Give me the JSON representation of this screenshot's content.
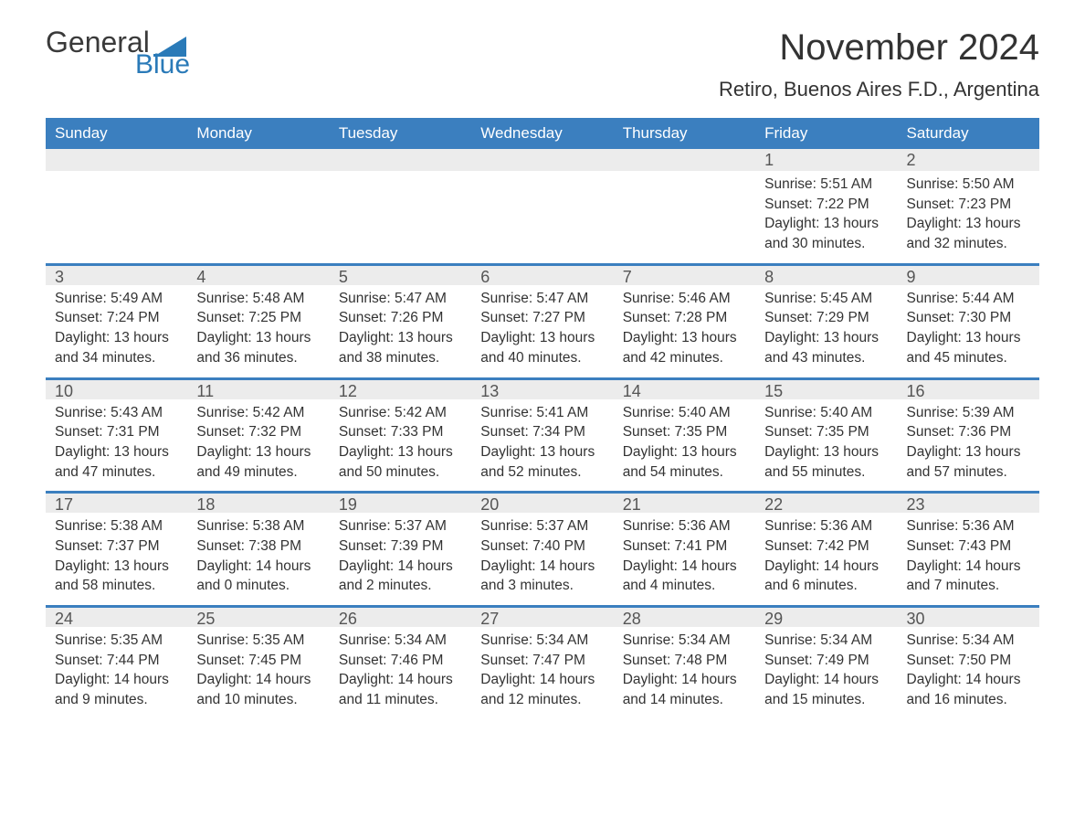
{
  "colors": {
    "header_bg": "#3b7fbf",
    "header_text": "#ffffff",
    "daynum_strip_bg": "#ececec",
    "week_divider": "#3b7fbf",
    "body_text": "#333333",
    "logo_blue": "#2a7ab8",
    "background": "#ffffff"
  },
  "typography": {
    "month_title_fontsize": 40,
    "location_fontsize": 22,
    "weekday_fontsize": 17,
    "daynum_fontsize": 18,
    "body_fontsize": 15.5,
    "font_family": "Arial"
  },
  "logo": {
    "line1": "General",
    "line2": "Blue"
  },
  "title": "November 2024",
  "location": "Retiro, Buenos Aires F.D., Argentina",
  "weekdays": [
    "Sunday",
    "Monday",
    "Tuesday",
    "Wednesday",
    "Thursday",
    "Friday",
    "Saturday"
  ],
  "weeks": [
    [
      null,
      null,
      null,
      null,
      null,
      {
        "day": "1",
        "sunrise": "Sunrise: 5:51 AM",
        "sunset": "Sunset: 7:22 PM",
        "daylight1": "Daylight: 13 hours",
        "daylight2": "and 30 minutes."
      },
      {
        "day": "2",
        "sunrise": "Sunrise: 5:50 AM",
        "sunset": "Sunset: 7:23 PM",
        "daylight1": "Daylight: 13 hours",
        "daylight2": "and 32 minutes."
      }
    ],
    [
      {
        "day": "3",
        "sunrise": "Sunrise: 5:49 AM",
        "sunset": "Sunset: 7:24 PM",
        "daylight1": "Daylight: 13 hours",
        "daylight2": "and 34 minutes."
      },
      {
        "day": "4",
        "sunrise": "Sunrise: 5:48 AM",
        "sunset": "Sunset: 7:25 PM",
        "daylight1": "Daylight: 13 hours",
        "daylight2": "and 36 minutes."
      },
      {
        "day": "5",
        "sunrise": "Sunrise: 5:47 AM",
        "sunset": "Sunset: 7:26 PM",
        "daylight1": "Daylight: 13 hours",
        "daylight2": "and 38 minutes."
      },
      {
        "day": "6",
        "sunrise": "Sunrise: 5:47 AM",
        "sunset": "Sunset: 7:27 PM",
        "daylight1": "Daylight: 13 hours",
        "daylight2": "and 40 minutes."
      },
      {
        "day": "7",
        "sunrise": "Sunrise: 5:46 AM",
        "sunset": "Sunset: 7:28 PM",
        "daylight1": "Daylight: 13 hours",
        "daylight2": "and 42 minutes."
      },
      {
        "day": "8",
        "sunrise": "Sunrise: 5:45 AM",
        "sunset": "Sunset: 7:29 PM",
        "daylight1": "Daylight: 13 hours",
        "daylight2": "and 43 minutes."
      },
      {
        "day": "9",
        "sunrise": "Sunrise: 5:44 AM",
        "sunset": "Sunset: 7:30 PM",
        "daylight1": "Daylight: 13 hours",
        "daylight2": "and 45 minutes."
      }
    ],
    [
      {
        "day": "10",
        "sunrise": "Sunrise: 5:43 AM",
        "sunset": "Sunset: 7:31 PM",
        "daylight1": "Daylight: 13 hours",
        "daylight2": "and 47 minutes."
      },
      {
        "day": "11",
        "sunrise": "Sunrise: 5:42 AM",
        "sunset": "Sunset: 7:32 PM",
        "daylight1": "Daylight: 13 hours",
        "daylight2": "and 49 minutes."
      },
      {
        "day": "12",
        "sunrise": "Sunrise: 5:42 AM",
        "sunset": "Sunset: 7:33 PM",
        "daylight1": "Daylight: 13 hours",
        "daylight2": "and 50 minutes."
      },
      {
        "day": "13",
        "sunrise": "Sunrise: 5:41 AM",
        "sunset": "Sunset: 7:34 PM",
        "daylight1": "Daylight: 13 hours",
        "daylight2": "and 52 minutes."
      },
      {
        "day": "14",
        "sunrise": "Sunrise: 5:40 AM",
        "sunset": "Sunset: 7:35 PM",
        "daylight1": "Daylight: 13 hours",
        "daylight2": "and 54 minutes."
      },
      {
        "day": "15",
        "sunrise": "Sunrise: 5:40 AM",
        "sunset": "Sunset: 7:35 PM",
        "daylight1": "Daylight: 13 hours",
        "daylight2": "and 55 minutes."
      },
      {
        "day": "16",
        "sunrise": "Sunrise: 5:39 AM",
        "sunset": "Sunset: 7:36 PM",
        "daylight1": "Daylight: 13 hours",
        "daylight2": "and 57 minutes."
      }
    ],
    [
      {
        "day": "17",
        "sunrise": "Sunrise: 5:38 AM",
        "sunset": "Sunset: 7:37 PM",
        "daylight1": "Daylight: 13 hours",
        "daylight2": "and 58 minutes."
      },
      {
        "day": "18",
        "sunrise": "Sunrise: 5:38 AM",
        "sunset": "Sunset: 7:38 PM",
        "daylight1": "Daylight: 14 hours",
        "daylight2": "and 0 minutes."
      },
      {
        "day": "19",
        "sunrise": "Sunrise: 5:37 AM",
        "sunset": "Sunset: 7:39 PM",
        "daylight1": "Daylight: 14 hours",
        "daylight2": "and 2 minutes."
      },
      {
        "day": "20",
        "sunrise": "Sunrise: 5:37 AM",
        "sunset": "Sunset: 7:40 PM",
        "daylight1": "Daylight: 14 hours",
        "daylight2": "and 3 minutes."
      },
      {
        "day": "21",
        "sunrise": "Sunrise: 5:36 AM",
        "sunset": "Sunset: 7:41 PM",
        "daylight1": "Daylight: 14 hours",
        "daylight2": "and 4 minutes."
      },
      {
        "day": "22",
        "sunrise": "Sunrise: 5:36 AM",
        "sunset": "Sunset: 7:42 PM",
        "daylight1": "Daylight: 14 hours",
        "daylight2": "and 6 minutes."
      },
      {
        "day": "23",
        "sunrise": "Sunrise: 5:36 AM",
        "sunset": "Sunset: 7:43 PM",
        "daylight1": "Daylight: 14 hours",
        "daylight2": "and 7 minutes."
      }
    ],
    [
      {
        "day": "24",
        "sunrise": "Sunrise: 5:35 AM",
        "sunset": "Sunset: 7:44 PM",
        "daylight1": "Daylight: 14 hours",
        "daylight2": "and 9 minutes."
      },
      {
        "day": "25",
        "sunrise": "Sunrise: 5:35 AM",
        "sunset": "Sunset: 7:45 PM",
        "daylight1": "Daylight: 14 hours",
        "daylight2": "and 10 minutes."
      },
      {
        "day": "26",
        "sunrise": "Sunrise: 5:34 AM",
        "sunset": "Sunset: 7:46 PM",
        "daylight1": "Daylight: 14 hours",
        "daylight2": "and 11 minutes."
      },
      {
        "day": "27",
        "sunrise": "Sunrise: 5:34 AM",
        "sunset": "Sunset: 7:47 PM",
        "daylight1": "Daylight: 14 hours",
        "daylight2": "and 12 minutes."
      },
      {
        "day": "28",
        "sunrise": "Sunrise: 5:34 AM",
        "sunset": "Sunset: 7:48 PM",
        "daylight1": "Daylight: 14 hours",
        "daylight2": "and 14 minutes."
      },
      {
        "day": "29",
        "sunrise": "Sunrise: 5:34 AM",
        "sunset": "Sunset: 7:49 PM",
        "daylight1": "Daylight: 14 hours",
        "daylight2": "and 15 minutes."
      },
      {
        "day": "30",
        "sunrise": "Sunrise: 5:34 AM",
        "sunset": "Sunset: 7:50 PM",
        "daylight1": "Daylight: 14 hours",
        "daylight2": "and 16 minutes."
      }
    ]
  ]
}
